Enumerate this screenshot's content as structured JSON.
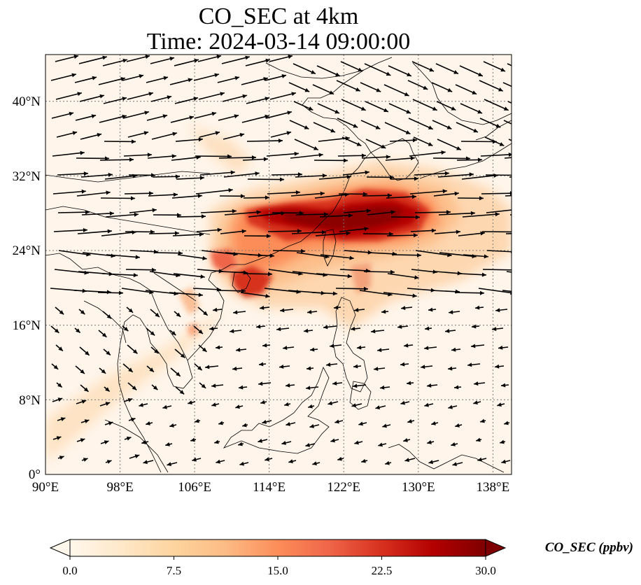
{
  "title": {
    "line1": "CO_SEC at 4km",
    "line2": "Time: 2024-03-14 09:00:00"
  },
  "map": {
    "lon_ticks": [
      "90°E",
      "98°E",
      "106°E",
      "114°E",
      "122°E",
      "130°E",
      "138°E"
    ],
    "lat_ticks": [
      "40°N",
      "32°N",
      "24°N",
      "16°N",
      "8°N",
      "0°"
    ],
    "lon_range": [
      90,
      140
    ],
    "lat_range": [
      0,
      45
    ]
  },
  "colorbar": {
    "label": "CO_SEC (ppbv)",
    "ticks": [
      "0.0",
      "7.5",
      "15.0",
      "22.5",
      "30.0"
    ],
    "range": [
      0,
      30
    ],
    "colormap": "OrRd",
    "colors": [
      "#fff7ec",
      "#fee8c8",
      "#fdd49e",
      "#fdbb84",
      "#fc8d59",
      "#ef6548",
      "#d7301f",
      "#b30000",
      "#7f0000"
    ]
  }
}
